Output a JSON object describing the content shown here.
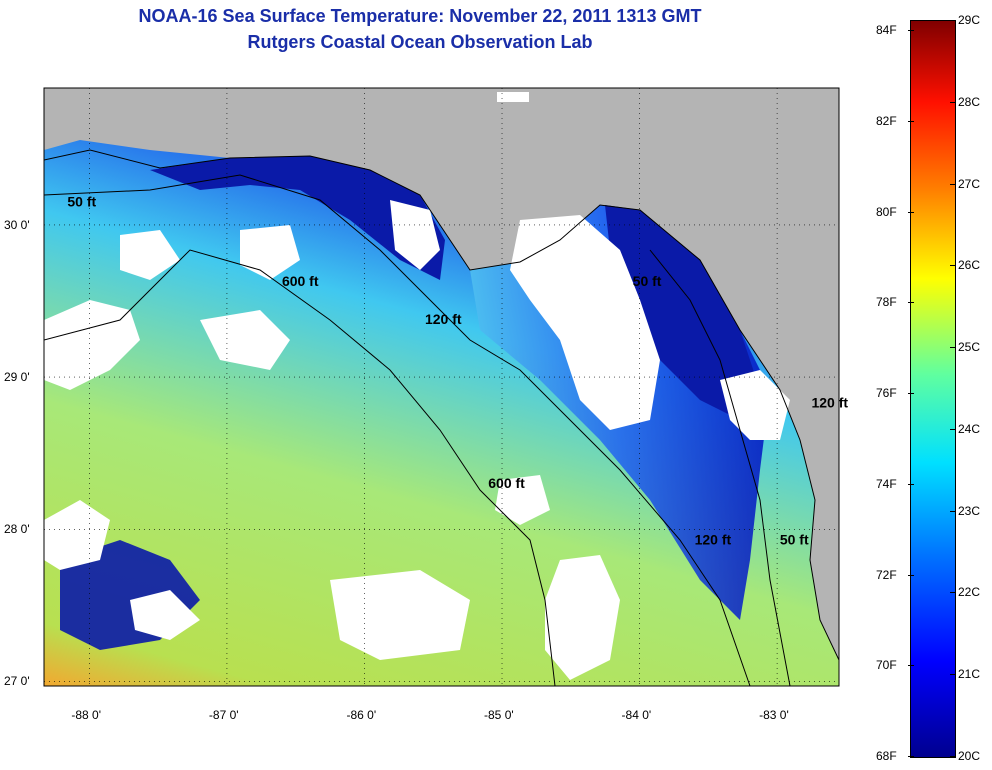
{
  "title": "NOAA-16 Sea Surface Temperature:  November 22, 2011 1313 GMT",
  "subtitle": "Rutgers Coastal Ocean Observation Lab",
  "map": {
    "lon_range": [
      -88.33,
      -82.55
    ],
    "lat_range": [
      26.97,
      30.9
    ],
    "lat_ticks": [
      {
        "value": 27,
        "label": "27 0'"
      },
      {
        "value": 28,
        "label": "28 0'"
      },
      {
        "value": 29,
        "label": "29 0'"
      },
      {
        "value": 30,
        "label": "30 0'"
      }
    ],
    "lon_ticks": [
      {
        "value": -88,
        "label": "-88 0'"
      },
      {
        "value": -87,
        "label": "-87 0'"
      },
      {
        "value": -86,
        "label": "-86 0'"
      },
      {
        "value": -85,
        "label": "-85 0'"
      },
      {
        "value": -84,
        "label": "-84 0'"
      },
      {
        "value": -83,
        "label": "-83 0'"
      }
    ],
    "contour_labels": [
      {
        "text": "50 ft",
        "lon": -88.16,
        "lat": 30.12
      },
      {
        "text": "600 ft",
        "lon": -86.6,
        "lat": 29.6
      },
      {
        "text": "120 ft",
        "lon": -85.56,
        "lat": 29.35
      },
      {
        "text": "50 ft",
        "lon": -84.05,
        "lat": 29.6
      },
      {
        "text": "600 ft",
        "lon": -85.1,
        "lat": 28.27
      },
      {
        "text": "120 ft",
        "lon": -83.6,
        "lat": 27.9
      },
      {
        "text": "50 ft",
        "lon": -82.98,
        "lat": 27.9
      },
      {
        "text": "120 ft",
        "lon": -82.75,
        "lat": 28.8
      }
    ],
    "colors": {
      "land": "#b4b4b4",
      "cloud": "#ffffff",
      "ocean_warm": "#c8e84a",
      "ocean_cool": "#1040e0"
    }
  },
  "colorbar": {
    "celsius": [
      "29C",
      "28C",
      "27C",
      "26C",
      "25C",
      "24C",
      "23C",
      "22C",
      "21C",
      "20C"
    ],
    "fahrenheit": [
      "84F",
      "82F",
      "80F",
      "78F",
      "76F",
      "74F",
      "72F",
      "70F",
      "68F"
    ]
  }
}
